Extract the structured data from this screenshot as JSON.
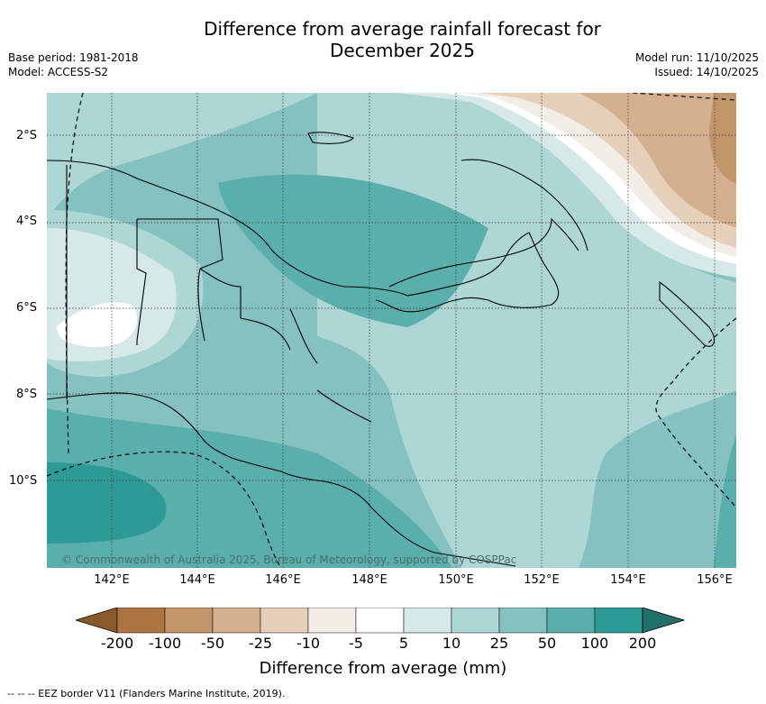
{
  "title_line1": "Difference from average rainfall forecast for",
  "title_line2": "December 2025",
  "meta_left": [
    "Base period: 1981-2018",
    "Model: ACCESS-S2"
  ],
  "meta_right": [
    "Model run: 11/10/2025",
    "Issued: 14/10/2025"
  ],
  "lat_labels": [
    "2°S",
    "4°S",
    "6°S",
    "8°S",
    "10°S"
  ],
  "lon_labels": [
    "142°E",
    "144°E",
    "146°E",
    "148°E",
    "150°E",
    "152°E",
    "154°E",
    "156°E"
  ],
  "copyright": "© Commonwealth of Australia 2025, Bureau of Meteorology, supported by COSPPac",
  "colorbar": {
    "labels": [
      "-200",
      "-100",
      "-50",
      "-25",
      "-10",
      "-5",
      "5",
      "10",
      "25",
      "50",
      "100",
      "200"
    ],
    "colors": [
      "#8a5a2b",
      "#ab7440",
      "#c2956a",
      "#d4b08f",
      "#e6cfbb",
      "#f3ede8",
      "#ffffff",
      "#d6e9e8",
      "#aed6d5",
      "#84c1c0",
      "#5aaeab",
      "#2f9a95",
      "#236f6a"
    ],
    "title": "Difference from average (mm)"
  },
  "footnote": "--  --  -- EEZ border V11 (Flanders Marine Institute, 2019).",
  "legend_items": [
    "EEZ border"
  ]
}
